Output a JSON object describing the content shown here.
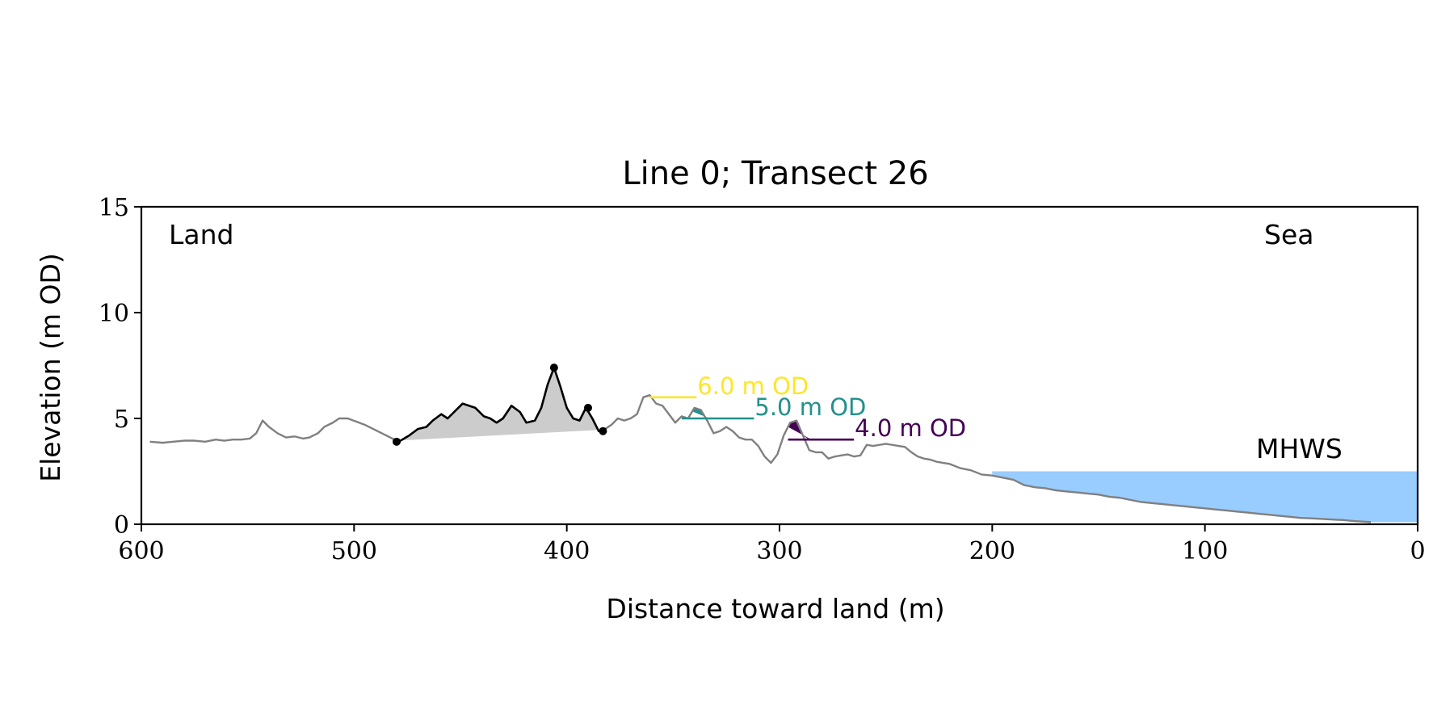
{
  "chart_data": {
    "type": "line",
    "title": "Line 0; Transect 26",
    "xlabel": "Distance toward land (m)",
    "ylabel": "Elevation (m OD)",
    "xlim": [
      600,
      0
    ],
    "ylim": [
      0,
      15
    ],
    "x_ticks": [
      600,
      500,
      400,
      300,
      200,
      100,
      0
    ],
    "y_ticks": [
      0,
      5,
      10,
      15
    ],
    "grid": false,
    "annotations": {
      "land": "Land",
      "sea": "Sea"
    },
    "mhws": {
      "label": "MHWS",
      "elevation": 2.5,
      "from_distance": 200,
      "to_distance": 0,
      "color": "#99ccff",
      "label_color": "#6699cc"
    },
    "profile": {
      "color": "#808080",
      "x": [
        596,
        590,
        585,
        580,
        575,
        570,
        565,
        561,
        557,
        553,
        549,
        546,
        543,
        540,
        536,
        532,
        528,
        524,
        521,
        517,
        514,
        510,
        507,
        503,
        499,
        495,
        491,
        487,
        483,
        479,
        474,
        470,
        466,
        463,
        459,
        456,
        453,
        449,
        446,
        443,
        439,
        436,
        433,
        430,
        426,
        422,
        419,
        415,
        412,
        409,
        406,
        403,
        400,
        397,
        394,
        391,
        388,
        385,
        382,
        379,
        376,
        373,
        370,
        367,
        364,
        361,
        358,
        355,
        352,
        349,
        346,
        343,
        340,
        337,
        334,
        331,
        328,
        325,
        322,
        319,
        316,
        313,
        310,
        307,
        304,
        301,
        298,
        295,
        292,
        289,
        286,
        283,
        280,
        277,
        274,
        271,
        268,
        265,
        262,
        259,
        256,
        253,
        250,
        247,
        244,
        241,
        238,
        235,
        232,
        229,
        226,
        223,
        220,
        215,
        210,
        205,
        200,
        195,
        190,
        185,
        180,
        175,
        170,
        165,
        160,
        155,
        150,
        145,
        140,
        135,
        130,
        125,
        120,
        115,
        110,
        105,
        100,
        95,
        90,
        85,
        80,
        75,
        70,
        65,
        60,
        55,
        50,
        45,
        40,
        35,
        30,
        25,
        22
      ],
      "y": [
        3.9,
        3.85,
        3.9,
        3.95,
        3.95,
        3.9,
        4.0,
        3.95,
        4.0,
        4.0,
        4.05,
        4.3,
        4.9,
        4.6,
        4.3,
        4.1,
        4.15,
        4.05,
        4.1,
        4.3,
        4.6,
        4.8,
        5.0,
        5.0,
        4.85,
        4.7,
        4.5,
        4.3,
        4.1,
        3.9,
        4.2,
        4.5,
        4.6,
        4.9,
        5.2,
        5.0,
        5.3,
        5.7,
        5.6,
        5.5,
        5.1,
        5.0,
        4.8,
        5.0,
        5.6,
        5.3,
        4.8,
        4.9,
        5.5,
        6.6,
        7.4,
        6.5,
        5.5,
        5.0,
        4.9,
        5.5,
        5.0,
        4.4,
        4.5,
        4.7,
        5.0,
        4.9,
        5.0,
        5.2,
        6.0,
        6.1,
        5.7,
        5.6,
        5.2,
        4.8,
        5.1,
        5.0,
        5.5,
        5.4,
        4.9,
        4.3,
        4.4,
        4.6,
        4.4,
        4.1,
        4.0,
        4.0,
        3.7,
        3.2,
        2.9,
        3.3,
        4.2,
        4.8,
        4.9,
        4.2,
        3.5,
        3.4,
        3.4,
        3.1,
        3.2,
        3.25,
        3.3,
        3.2,
        3.25,
        3.75,
        3.7,
        3.75,
        3.8,
        3.75,
        3.7,
        3.65,
        3.4,
        3.2,
        3.1,
        3.05,
        2.95,
        2.9,
        2.85,
        2.65,
        2.55,
        2.35,
        2.3,
        2.2,
        2.1,
        1.85,
        1.75,
        1.7,
        1.6,
        1.55,
        1.5,
        1.45,
        1.4,
        1.3,
        1.25,
        1.15,
        1.05,
        1.0,
        0.95,
        0.9,
        0.85,
        0.8,
        0.75,
        0.7,
        0.65,
        0.6,
        0.55,
        0.5,
        0.45,
        0.4,
        0.35,
        0.3,
        0.28,
        0.25,
        0.22,
        0.2,
        0.15,
        0.12,
        0.1
      ]
    },
    "dune": {
      "color": "#000000",
      "fill_color": "#cccccc",
      "x_start": 480,
      "x_end": 383,
      "points": [
        [
          480,
          3.9
        ],
        [
          406,
          7.4
        ],
        [
          390,
          5.5
        ],
        [
          383,
          4.4
        ]
      ]
    },
    "levels": [
      {
        "label": "6.0 m OD",
        "elevation": 6.0,
        "line_from": 361,
        "line_to": 339,
        "color": "#fde725"
      },
      {
        "label": "5.0 m OD",
        "elevation": 5.0,
        "line_from": 346,
        "line_to": 312,
        "color": "#21918c",
        "fill_from": 341,
        "fill_to": 333
      },
      {
        "label": "4.0 m OD",
        "elevation": 4.0,
        "line_from": 296,
        "line_to": 265,
        "color": "#440154",
        "fill_from": 296,
        "fill_to": 285
      }
    ]
  }
}
